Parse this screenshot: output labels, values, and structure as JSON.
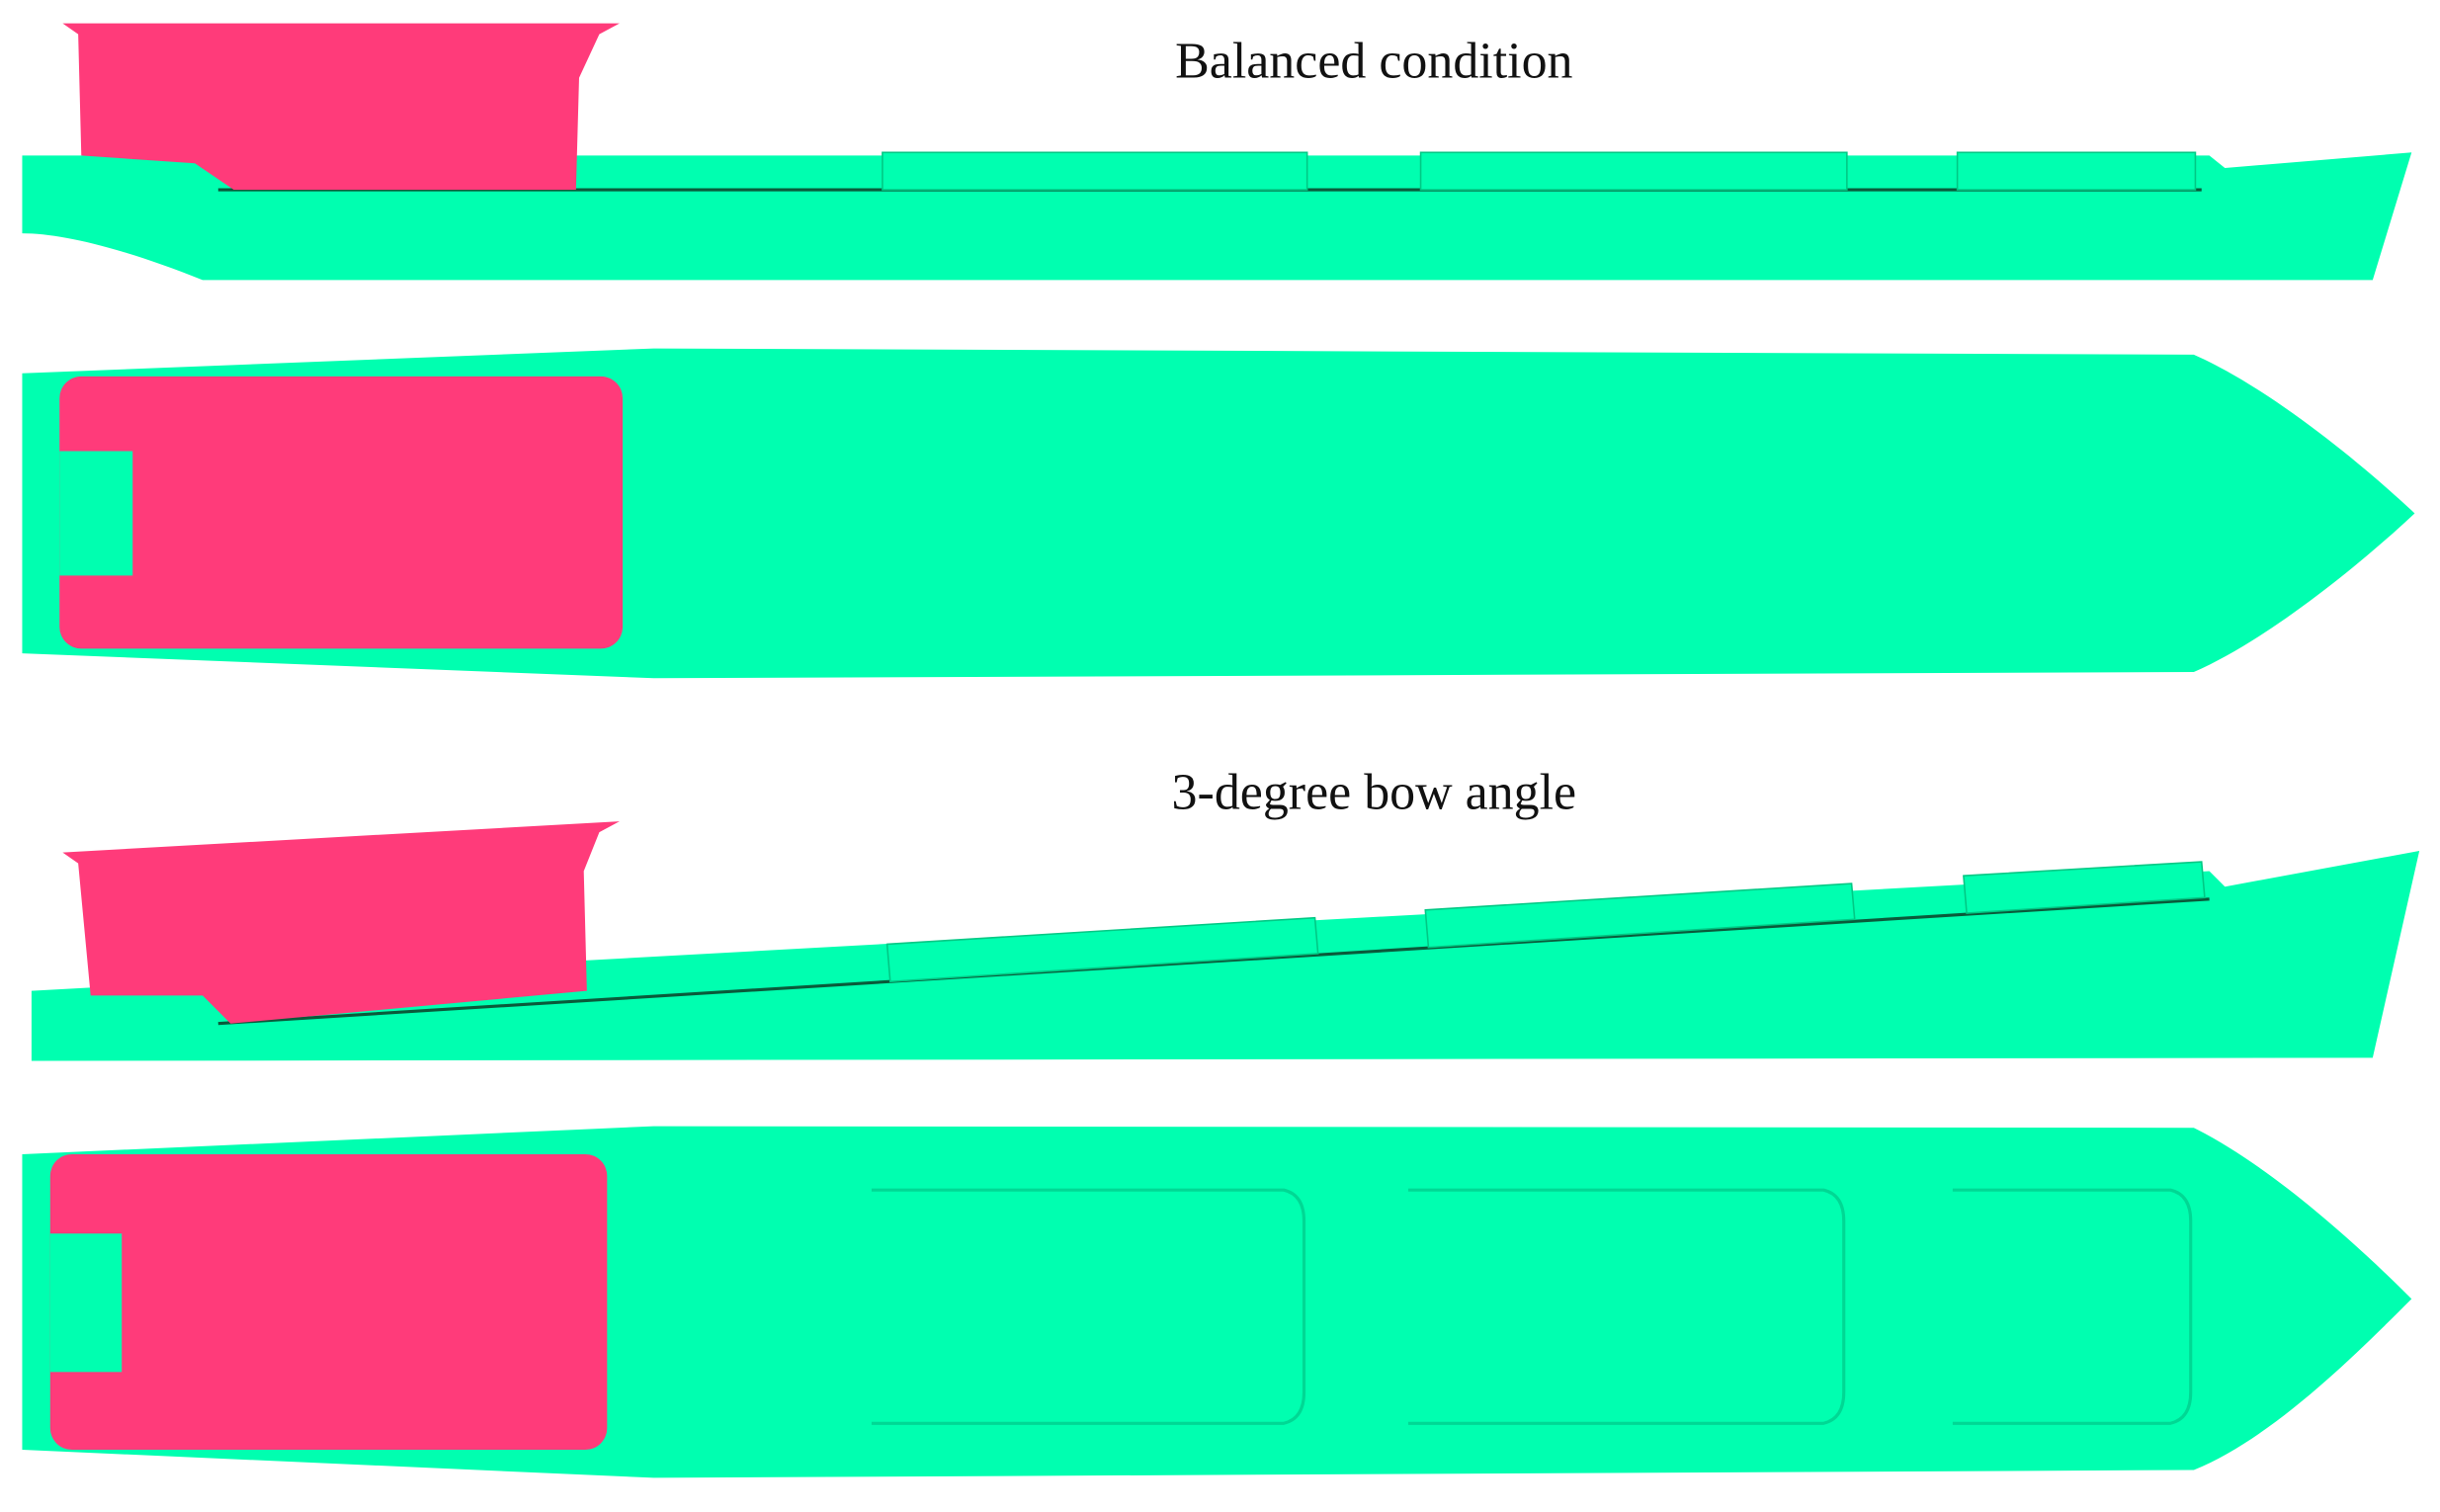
{
  "panels": [
    {
      "label": "Balanced condition"
    },
    {
      "label": "3-degree bow angle"
    }
  ]
}
